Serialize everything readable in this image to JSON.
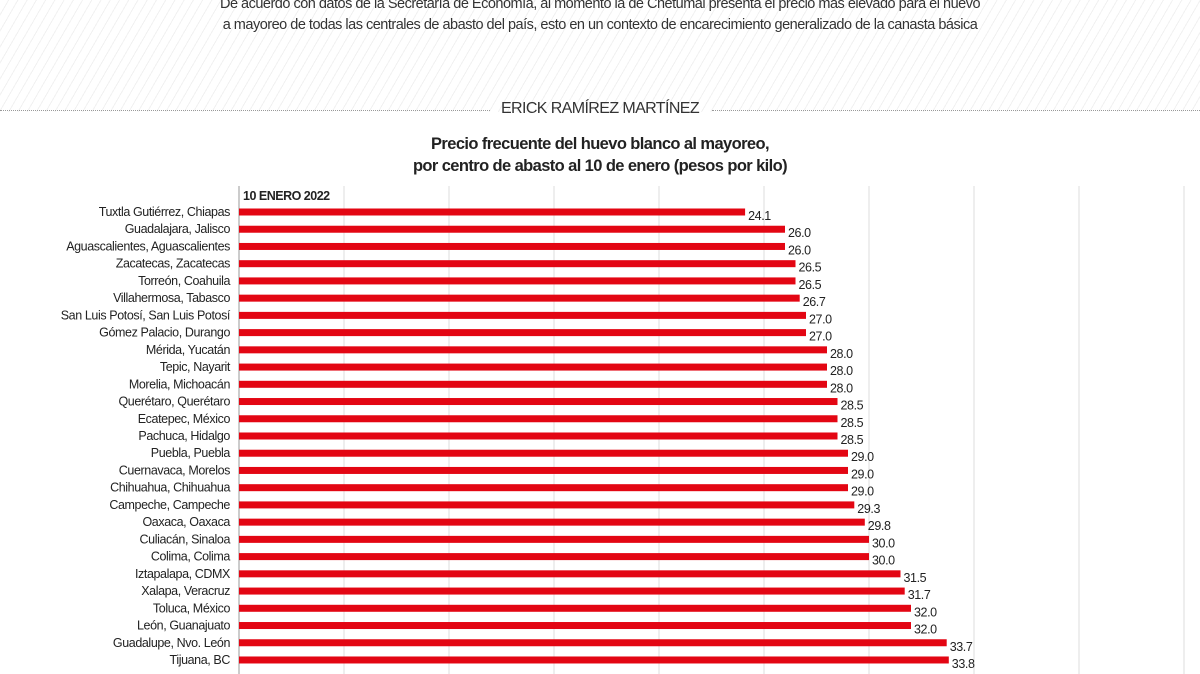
{
  "intro": {
    "line1": "De acuerdo con datos de la Secretaría de Economía, al momento la de Chetumal presenta el precio más elevado para el huevo",
    "line2": "a mayoreo de todas las centrales de abasto del país, esto en un contexto de encarecimiento generalizado de la canasta básica"
  },
  "author": "ERICK RAMÍREZ MARTÍNEZ",
  "chart_data": {
    "type": "bar",
    "orientation": "horizontal",
    "title_line1": "Precio frecuente del huevo blanco al mayoreo,",
    "title_line2": "por centro de abasto al 10 de enero  (pesos por kilo)",
    "series_label": "10 ENERO 2022",
    "xlim": [
      0,
      45
    ],
    "grid": true,
    "bar_color": "#e30613",
    "categories": [
      "Tuxtla Gutiérrez, Chiapas",
      "Guadalajara, Jalisco",
      "Aguascalientes, Aguascalientes",
      "Zacatecas, Zacatecas",
      "Torreón, Coahuila",
      "Villahermosa, Tabasco",
      "San Luis Potosí, San Luis Potosí",
      "Gómez Palacio, Durango",
      "Mérida, Yucatán",
      "Tepic, Nayarit",
      "Morelia, Michoacán",
      "Querétaro, Querétaro",
      "Ecatepec, México",
      "Pachuca, Hidalgo",
      "Puebla, Puebla",
      "Cuernavaca, Morelos",
      "Chihuahua, Chihuahua",
      "Campeche, Campeche",
      "Oaxaca, Oaxaca",
      "Culiacán, Sinaloa",
      "Colima, Colima",
      "Iztapalapa, CDMX",
      "Xalapa, Veracruz",
      "Toluca, México",
      "León, Guanajuato",
      "Guadalupe, Nvo. León",
      "Tijuana, BC"
    ],
    "values": [
      24.1,
      26.0,
      26.0,
      26.5,
      26.5,
      26.7,
      27.0,
      27.0,
      28.0,
      28.0,
      28.0,
      28.5,
      28.5,
      28.5,
      29.0,
      29.0,
      29.0,
      29.3,
      29.8,
      30.0,
      30.0,
      31.5,
      31.7,
      32.0,
      32.0,
      33.7,
      33.8
    ],
    "labels": [
      "24.1",
      "26.0",
      "26.0",
      "26.5",
      "26.5",
      "26.7",
      "27.0",
      "27.0",
      "28.0",
      "28.0",
      "28.0",
      "28.5",
      "28.5",
      "28.5",
      "29.0",
      "29.0",
      "29.0",
      "29.3",
      "29.8",
      "30.0",
      "30.0",
      "31.5",
      "31.7",
      "32.0",
      "32.0",
      "33.7",
      "33.8"
    ]
  }
}
